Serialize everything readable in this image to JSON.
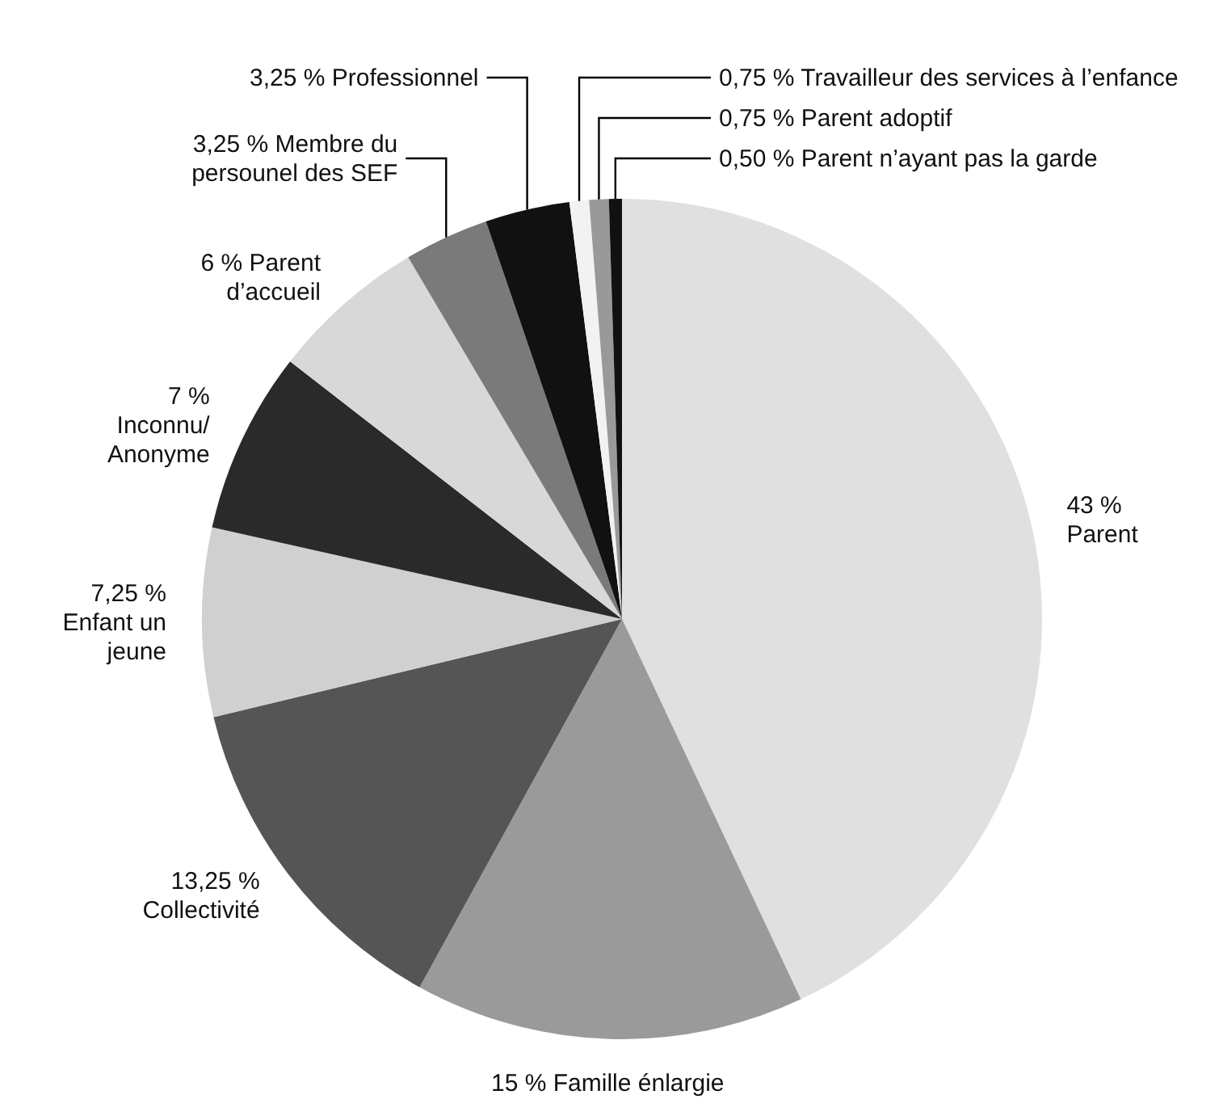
{
  "chart_data": {
    "type": "pie",
    "categories": [
      "Parent",
      "Famille énlargie",
      "Collectivité",
      "Enfant un jeune",
      "Inconnu/Anonyme",
      "Parent d’accueil",
      "Membre du persounel des SEF",
      "Professionnel",
      "Travailleur des services à l’enfance",
      "Parent adoptif",
      "Parent n’ayant pas la garde"
    ],
    "values": [
      43,
      15,
      13.25,
      7.25,
      7,
      6,
      3.25,
      3.25,
      0.75,
      0.75,
      0.5
    ],
    "colors": [
      "#e0e0e0",
      "#9a9a9a",
      "#555555",
      "#d0d0d0",
      "#2a2a2a",
      "#d8d8d8",
      "#7a7a7a",
      "#111111",
      "#f2f2f2",
      "#999999",
      "#111111"
    ],
    "value_labels": [
      "43 %",
      "15 %",
      "13,25 %",
      "7,25 %",
      "7 %",
      "6 %",
      "3,25 %",
      "3,25 %",
      "0,75 %",
      "0,75 %",
      "0,50 %"
    ],
    "legend": false
  }
}
